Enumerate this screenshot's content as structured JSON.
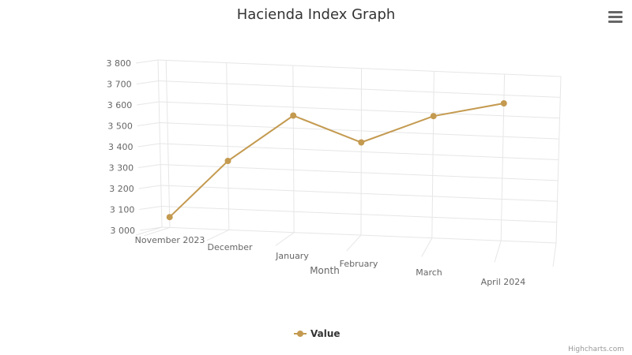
{
  "chart_data": {
    "type": "line",
    "title": "Hacienda Index Graph",
    "xlabel": "Month",
    "ylabel": "",
    "categories": [
      "November 2023",
      "December",
      "January",
      "February",
      "March",
      "April 2024"
    ],
    "series": [
      {
        "name": "Value",
        "values": [
          3050,
          3330,
          3560,
          3445,
          3585,
          3660
        ]
      }
    ],
    "ylim": [
      3000,
      3800
    ],
    "yticks": [
      "3 000",
      "3 100",
      "3 200",
      "3 300",
      "3 400",
      "3 500",
      "3 600",
      "3 700",
      "3 800"
    ],
    "grid": true,
    "legend_position": "bottom-center",
    "series_color": "#c49a50"
  },
  "menu": {
    "icon": "hamburger-menu-icon"
  },
  "credits": "Highcharts.com"
}
